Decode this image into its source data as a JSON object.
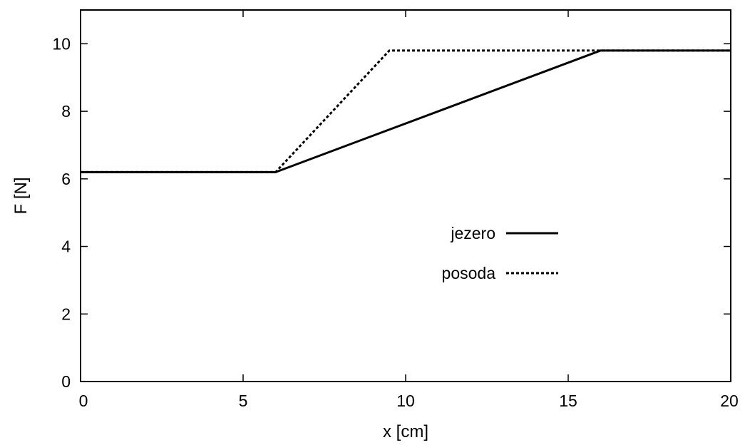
{
  "chart_data": {
    "type": "line",
    "title": "",
    "xlabel": "x [cm]",
    "ylabel": "F [N]",
    "xlim": [
      0,
      20
    ],
    "ylim": [
      0,
      11
    ],
    "xticks": [
      0,
      5,
      10,
      15,
      20
    ],
    "yticks": [
      0,
      2,
      4,
      6,
      8,
      10
    ],
    "grid": false,
    "legend_position": "center-right",
    "series": [
      {
        "name": "jezero",
        "style": "solid",
        "color": "#000000",
        "x": [
          0,
          6,
          16,
          20
        ],
        "y": [
          6.2,
          6.2,
          9.8,
          9.8
        ]
      },
      {
        "name": "posoda",
        "style": "dotted",
        "color": "#000000",
        "x": [
          0,
          6,
          9.5,
          20
        ],
        "y": [
          6.2,
          6.2,
          9.8,
          9.8
        ]
      }
    ]
  }
}
